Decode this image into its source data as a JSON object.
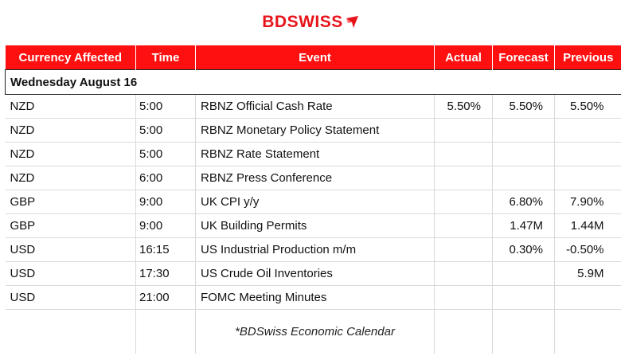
{
  "brand": {
    "name_part1": "BD",
    "name_part2": "SWISS",
    "accent": "#e8141b"
  },
  "table": {
    "header_bg": "#ff1010",
    "headers": [
      "Currency Affected",
      "Time",
      "Event",
      "Actual",
      "Forecast",
      "Previous"
    ],
    "day_label": "Wednesday August 16",
    "rows": [
      {
        "currency": "NZD",
        "time": "5:00",
        "event": "RBNZ Official Cash Rate",
        "actual": "5.50%",
        "forecast": "5.50%",
        "previous": "5.50%"
      },
      {
        "currency": "NZD",
        "time": "5:00",
        "event": "RBNZ Monetary Policy Statement",
        "actual": "",
        "forecast": "",
        "previous": ""
      },
      {
        "currency": "NZD",
        "time": "5:00",
        "event": "RBNZ Rate Statement",
        "actual": "",
        "forecast": "",
        "previous": ""
      },
      {
        "currency": "NZD",
        "time": "6:00",
        "event": "RBNZ Press Conference",
        "actual": "",
        "forecast": "",
        "previous": ""
      },
      {
        "currency": "GBP",
        "time": "9:00",
        "event": "UK CPI y/y",
        "actual": "",
        "forecast": "6.80%",
        "previous": "7.90%"
      },
      {
        "currency": "GBP",
        "time": "9:00",
        "event": "UK Building Permits",
        "actual": "",
        "forecast": "1.47M",
        "previous": "1.44M"
      },
      {
        "currency": "USD",
        "time": "16:15",
        "event": "US Industrial Production m/m",
        "actual": "",
        "forecast": "0.30%",
        "previous": "-0.50%"
      },
      {
        "currency": "USD",
        "time": "17:30",
        "event": "US Crude Oil Inventories",
        "actual": "",
        "forecast": "",
        "previous": "5.9M"
      },
      {
        "currency": "USD",
        "time": "21:00",
        "event": "FOMC Meeting Minutes",
        "actual": "",
        "forecast": "",
        "previous": ""
      }
    ],
    "footer_credit": "*BDSwiss Economic Calendar"
  }
}
